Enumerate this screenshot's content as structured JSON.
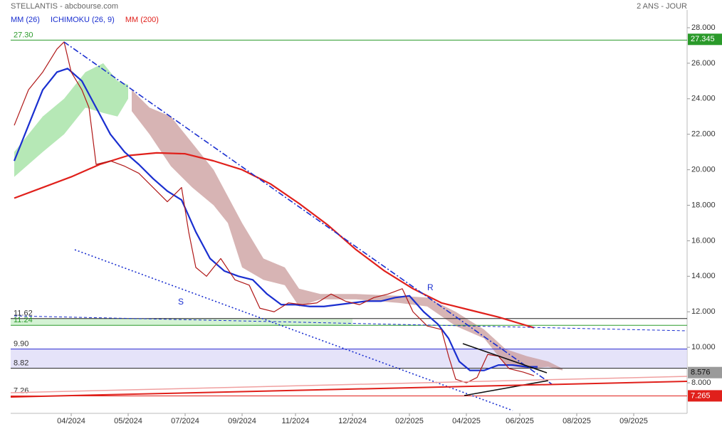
{
  "chart_data": {
    "type": "line",
    "header": "STELLANTIS - abcbourse.com",
    "period": "2 ANS - JOUR",
    "legend": [
      {
        "name": "MM (26)",
        "color": "#1a2fd0"
      },
      {
        "name": "ICHIMOKU (26, 9)",
        "color": "#1a2fd0"
      },
      {
        "name": "MM (200)",
        "color": "#e0201b"
      }
    ],
    "xlim": [
      0,
      190
    ],
    "xticks": [
      {
        "value": 17,
        "label": "04/2024"
      },
      {
        "value": 33,
        "label": "05/2024"
      },
      {
        "value": 49,
        "label": "07/2024"
      },
      {
        "value": 65,
        "label": "09/2024"
      },
      {
        "value": 80,
        "label": "11/2024"
      },
      {
        "value": 96,
        "label": "12/2024"
      },
      {
        "value": 112,
        "label": "02/2025"
      },
      {
        "value": 128,
        "label": "04/2025"
      },
      {
        "value": 143,
        "label": "06/2025"
      },
      {
        "value": 159,
        "label": "08/2025"
      },
      {
        "value": 175,
        "label": "09/2025"
      }
    ],
    "ylim": [
      6.4,
      29.0
    ],
    "yticks": [
      {
        "value": 8,
        "label": "8.000"
      },
      {
        "value": 10,
        "label": "10.000"
      },
      {
        "value": 12,
        "label": "12.000"
      },
      {
        "value": 14,
        "label": "14.000"
      },
      {
        "value": 16,
        "label": "16.000"
      },
      {
        "value": 18,
        "label": "18.000"
      },
      {
        "value": 20,
        "label": "20.000"
      },
      {
        "value": 22,
        "label": "22.000"
      },
      {
        "value": 24,
        "label": "24.000"
      },
      {
        "value": 26,
        "label": "26.000"
      },
      {
        "value": 28,
        "label": "28.000"
      }
    ],
    "clouds": [
      {
        "color": "#9ee09e",
        "x": [
          1,
          9,
          15,
          21,
          26,
          30,
          33
        ],
        "upper": [
          21.0,
          23.0,
          24.0,
          25.5,
          26.0,
          25.0,
          24.8
        ],
        "lower": [
          19.6,
          21.0,
          22.0,
          23.5,
          23.2,
          23.0,
          24.0
        ]
      },
      {
        "color": "#c99b9b",
        "x": [
          34,
          39,
          45,
          51,
          57,
          61,
          65,
          71,
          77,
          81,
          87,
          97,
          109,
          117,
          125,
          133,
          139,
          145,
          151,
          155
        ],
        "upper": [
          24.5,
          23.5,
          23.0,
          21.5,
          20.0,
          18.5,
          17.0,
          15.0,
          14.5,
          13.3,
          13.0,
          13.0,
          12.9,
          12.8,
          12.0,
          11.0,
          9.9,
          9.5,
          9.2,
          8.8
        ],
        "lower": [
          23.3,
          22.0,
          20.2,
          19.0,
          18.0,
          17.0,
          14.5,
          13.8,
          13.5,
          12.3,
          12.7,
          12.7,
          12.5,
          12.3,
          11.2,
          10.5,
          9.0,
          8.8,
          8.9,
          8.7
        ]
      }
    ],
    "series": [
      {
        "name": "MM (200)",
        "color": "#e0201b",
        "width": 2.2,
        "x": [
          1,
          9,
          17,
          25,
          33,
          41,
          49,
          57,
          65,
          73,
          81,
          89,
          97,
          105,
          113,
          121,
          129,
          137,
          147
        ],
        "values": [
          18.4,
          19.0,
          19.6,
          20.3,
          20.8,
          20.95,
          20.9,
          20.5,
          20.0,
          19.2,
          18.1,
          16.9,
          15.5,
          14.3,
          13.3,
          12.5,
          12.1,
          11.7,
          11.1
        ]
      },
      {
        "name": "MM (26)",
        "color": "#1a2fd0",
        "width": 2.2,
        "x": [
          1,
          5,
          9,
          13,
          16,
          20,
          24,
          28,
          32,
          36,
          40,
          44,
          48,
          52,
          56,
          60,
          64,
          68,
          72,
          76,
          80,
          84,
          88,
          92,
          96,
          100,
          104,
          108,
          112,
          116,
          120,
          123,
          126,
          129,
          133,
          137,
          141,
          145,
          148
        ],
        "values": [
          20.5,
          22.5,
          24.5,
          25.5,
          25.7,
          25.0,
          23.5,
          22.0,
          21.0,
          20.3,
          19.5,
          18.8,
          18.3,
          16.5,
          15.0,
          14.3,
          14.0,
          13.8,
          13.0,
          12.4,
          12.4,
          12.3,
          12.3,
          12.4,
          12.5,
          12.6,
          12.6,
          12.8,
          12.9,
          12.0,
          11.3,
          10.5,
          9.2,
          8.7,
          8.7,
          9.0,
          9.0,
          8.9,
          8.9
        ]
      },
      {
        "name": "STELLANTIS",
        "color": "#b01818",
        "width": 1.2,
        "x": [
          1,
          5,
          9,
          13,
          15,
          17,
          20,
          22,
          24,
          28,
          32,
          36,
          40,
          44,
          48,
          50,
          52,
          55,
          59,
          63,
          67,
          70,
          74,
          78,
          82,
          86,
          90,
          94,
          98,
          102,
          106,
          110,
          113,
          117,
          121,
          123,
          125,
          128,
          131,
          134,
          137,
          140,
          144,
          147
        ],
        "values": [
          22.5,
          24.5,
          25.5,
          26.8,
          27.2,
          25.5,
          24.5,
          23.5,
          20.3,
          20.5,
          20.2,
          19.8,
          19.0,
          18.2,
          19.0,
          16.5,
          14.5,
          14.0,
          15.0,
          13.8,
          13.5,
          12.2,
          12.0,
          12.5,
          12.4,
          12.5,
          13.0,
          12.6,
          12.4,
          12.8,
          13.0,
          13.3,
          12.0,
          11.2,
          11.0,
          9.5,
          8.2,
          8.0,
          8.3,
          9.6,
          9.5,
          8.8,
          8.6,
          8.4
        ]
      }
    ],
    "levels": [
      {
        "value": 27.3,
        "label": "27.30",
        "color": "#2a9a2a"
      },
      {
        "value": 11.62,
        "color": "#222222"
      },
      {
        "value": 11.24,
        "color": "#2a9a2a"
      },
      {
        "value": 9.9,
        "label": "9.90",
        "color": "#2b2bd0"
      },
      {
        "value": 8.82,
        "color": "#222222"
      },
      {
        "value": 7.26,
        "color": "#e0201b"
      }
    ],
    "price_labels": [
      {
        "value": 27.345,
        "color": "#2a9a2a"
      },
      {
        "value": 8.576,
        "color": "#9a9a9a"
      },
      {
        "value": 7.265,
        "color": "#e0201b"
      }
    ],
    "annotations": [
      "S",
      "R"
    ]
  }
}
